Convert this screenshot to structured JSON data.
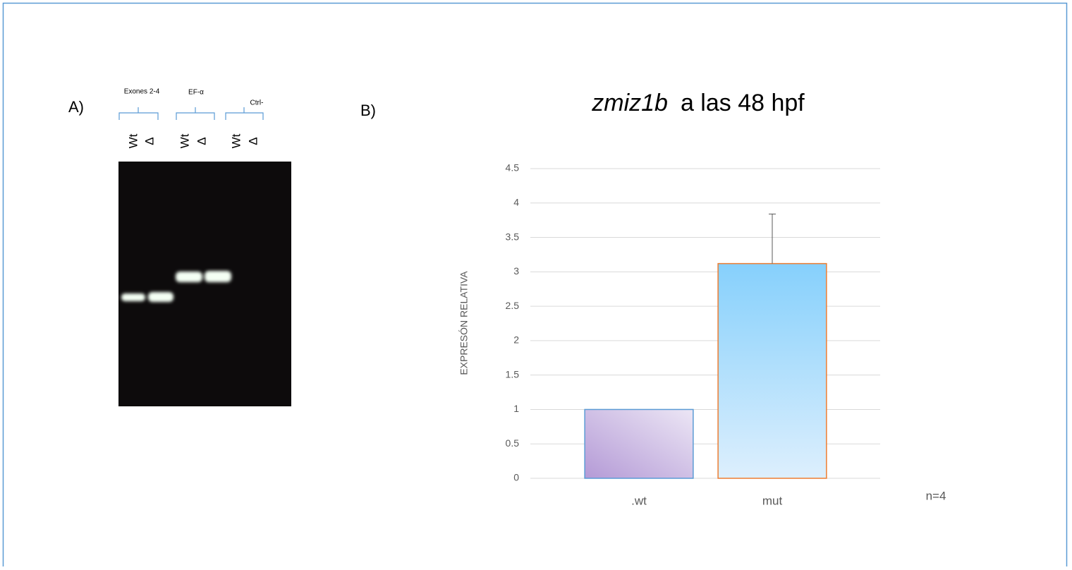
{
  "panel_a": {
    "label": "A)",
    "groups": [
      "Exones 2-4",
      "EF-α",
      "Ctrl-"
    ],
    "lanes": [
      "Wt",
      "Δ",
      "Wt",
      "Δ",
      "Wt",
      "Δ"
    ]
  },
  "panel_b_label": "B)",
  "chart_data": {
    "type": "bar",
    "title": [
      "zmiz1b",
      "a las 48 hpf"
    ],
    "ylabel": "EXPRESÓN RELATIVA",
    "categories": [
      ".wt",
      "mut"
    ],
    "values": [
      1,
      3.12
    ],
    "errors": [
      null,
      0.72
    ],
    "colors": [
      "#b49ad6",
      "#86d0fc"
    ],
    "edge_colors": [
      "#5b9bd5",
      "#ed7d31"
    ],
    "ylim": [
      0,
      4.5
    ],
    "yticks": [
      0,
      0.5,
      1,
      1.5,
      2,
      2.5,
      3,
      3.5,
      4,
      4.5
    ],
    "grid": true,
    "annotation": "n=4"
  }
}
